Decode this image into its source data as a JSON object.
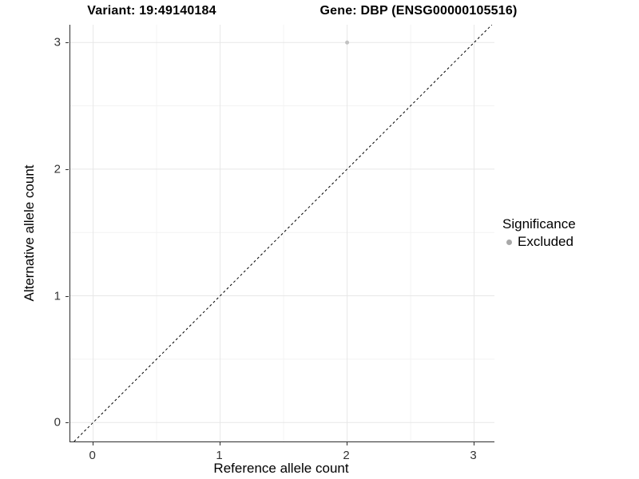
{
  "figure": {
    "title_left": "Variant: 19:49140184",
    "title_right": "Gene: DBP (ENSG00000105516)"
  },
  "chart_data": {
    "type": "scatter",
    "title_left": "Variant: 19:49140184",
    "title_right": "Gene: DBP (ENSG00000105516)",
    "xlabel": "Reference allele count",
    "ylabel": "Alternative allele count",
    "xlim": [
      -0.18,
      3.16
    ],
    "ylim": [
      -0.15,
      3.14
    ],
    "x_ticks": [
      0,
      1,
      2,
      3
    ],
    "y_ticks": [
      0,
      1,
      2,
      3
    ],
    "x_tick_labels": [
      "0",
      "1",
      "2",
      "3"
    ],
    "y_tick_labels": [
      "0",
      "1",
      "2",
      "3"
    ],
    "x_minor_ticks": [
      0.5,
      1.5,
      2.5
    ],
    "y_minor_ticks": [
      0.5,
      1.5,
      2.5
    ],
    "grid": "major and minor, light gray on white",
    "series": [
      {
        "name": "Excluded",
        "points": [
          {
            "x": 2,
            "y": 3
          }
        ]
      }
    ],
    "reference_line": {
      "kind": "identity y=x",
      "style": "dashed",
      "color": "#000000"
    },
    "legend": {
      "title": "Significance",
      "position": "right",
      "entries": [
        {
          "label": "Excluded",
          "color": "#a8a8a8"
        }
      ]
    },
    "colors": {
      "point": "#c2c2c2",
      "legend_dot": "#a8a8a8",
      "grid_major": "#e7e7e7",
      "grid_minor": "#f3f3f3",
      "axis_line": "#2e2e2e",
      "reference_line": "#000000"
    }
  }
}
